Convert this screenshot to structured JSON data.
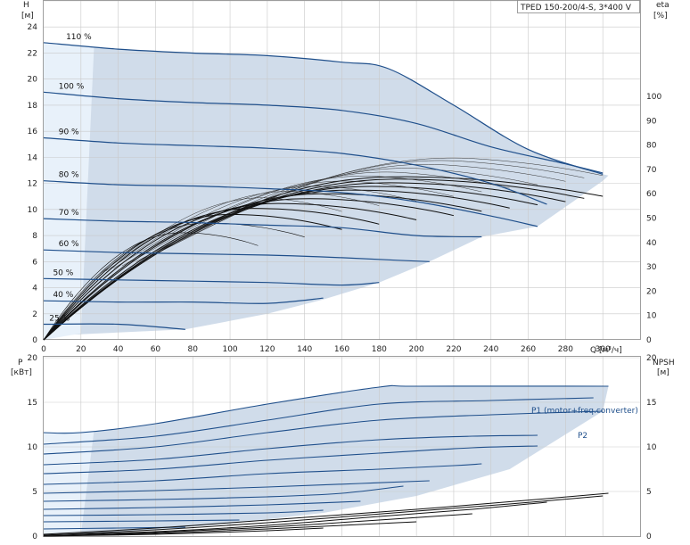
{
  "chart_data": [
    {
      "type": "line",
      "panel": "head-efficiency",
      "title": "TPED 150-200/4-S, 3*400 V",
      "x_axis": {
        "label": "Q [м³/ч]",
        "range": [
          0,
          320
        ],
        "ticks": [
          0,
          20,
          40,
          60,
          80,
          100,
          120,
          140,
          160,
          180,
          200,
          220,
          240,
          260,
          280,
          300
        ]
      },
      "y_left": {
        "label_top": "H",
        "label_unit": "[м]",
        "range": [
          0,
          26
        ],
        "ticks": [
          0,
          2,
          4,
          6,
          8,
          10,
          12,
          14,
          16,
          18,
          20,
          22,
          24
        ]
      },
      "y_right": {
        "label_top": "eta",
        "label_unit": "[%]",
        "range": [
          0,
          100
        ],
        "ticks": [
          0,
          10,
          20,
          30,
          40,
          50,
          60,
          70,
          80,
          90,
          100
        ]
      },
      "grid": true,
      "speed_curves": [
        {
          "name": "110 %",
          "points": [
            [
              0,
              22.8
            ],
            [
              40,
              22.3
            ],
            [
              80,
              22.0
            ],
            [
              120,
              21.8
            ],
            [
              160,
              21.3
            ],
            [
              185,
              20.8
            ],
            [
              220,
              18.0
            ],
            [
              260,
              14.6
            ],
            [
              300,
              12.7
            ]
          ]
        },
        {
          "name": "100 %",
          "points": [
            [
              0,
              19.0
            ],
            [
              40,
              18.5
            ],
            [
              80,
              18.2
            ],
            [
              120,
              18.0
            ],
            [
              160,
              17.6
            ],
            [
              200,
              16.6
            ],
            [
              240,
              14.8
            ],
            [
              280,
              13.5
            ],
            [
              300,
              12.8
            ]
          ]
        },
        {
          "name": "90 %",
          "points": [
            [
              0,
              15.5
            ],
            [
              40,
              15.1
            ],
            [
              80,
              14.9
            ],
            [
              120,
              14.7
            ],
            [
              160,
              14.3
            ],
            [
              200,
              13.4
            ],
            [
              240,
              12.0
            ],
            [
              270,
              10.4
            ]
          ]
        },
        {
          "name": "80 %",
          "points": [
            [
              0,
              12.2
            ],
            [
              40,
              11.9
            ],
            [
              80,
              11.8
            ],
            [
              120,
              11.6
            ],
            [
              160,
              11.3
            ],
            [
              200,
              10.6
            ],
            [
              240,
              9.5
            ],
            [
              265,
              8.7
            ]
          ]
        },
        {
          "name": "70 %",
          "points": [
            [
              0,
              9.3
            ],
            [
              40,
              9.1
            ],
            [
              80,
              9.0
            ],
            [
              120,
              8.8
            ],
            [
              160,
              8.6
            ],
            [
              200,
              8.0
            ],
            [
              235,
              7.9
            ]
          ]
        },
        {
          "name": "60 %",
          "points": [
            [
              0,
              6.9
            ],
            [
              40,
              6.7
            ],
            [
              80,
              6.6
            ],
            [
              120,
              6.5
            ],
            [
              160,
              6.3
            ],
            [
              190,
              6.1
            ],
            [
              207,
              6.0
            ]
          ]
        },
        {
          "name": "50 %",
          "points": [
            [
              0,
              4.7
            ],
            [
              40,
              4.6
            ],
            [
              80,
              4.5
            ],
            [
              120,
              4.4
            ],
            [
              160,
              4.2
            ],
            [
              180,
              4.4
            ]
          ]
        },
        {
          "name": "40 %",
          "points": [
            [
              0,
              3.0
            ],
            [
              40,
              2.9
            ],
            [
              80,
              2.9
            ],
            [
              120,
              2.8
            ],
            [
              150,
              3.2
            ]
          ]
        },
        {
          "name": "25 %",
          "points": [
            [
              0,
              1.2
            ],
            [
              40,
              1.2
            ],
            [
              76,
              0.8
            ]
          ]
        }
      ],
      "efficiency_curves": [
        {
          "scale": 1.0,
          "peak": [
            190,
            67.0
          ],
          "end_q": 300
        },
        {
          "scale": 0.97,
          "peak": [
            190,
            66.0
          ],
          "end_q": 290
        },
        {
          "scale": 0.93,
          "peak": [
            185,
            64.5
          ],
          "end_q": 280
        },
        {
          "scale": 0.88,
          "peak": [
            175,
            63.0
          ],
          "end_q": 265
        },
        {
          "scale": 0.83,
          "peak": [
            165,
            61.5
          ],
          "end_q": 250
        },
        {
          "scale": 0.78,
          "peak": [
            150,
            60.0
          ],
          "end_q": 235
        },
        {
          "scale": 0.72,
          "peak": [
            140,
            58.0
          ],
          "end_q": 220
        },
        {
          "scale": 0.66,
          "peak": [
            125,
            56.0
          ],
          "end_q": 200
        },
        {
          "scale": 0.6,
          "peak": [
            112,
            54.0
          ],
          "end_q": 180
        },
        {
          "scale": 0.54,
          "peak": [
            100,
            51.5
          ],
          "end_q": 160
        },
        {
          "scale": 0.47,
          "peak": [
            88,
            48.0
          ],
          "end_q": 140
        },
        {
          "scale": 0.4,
          "peak": [
            74,
            44.0
          ],
          "end_q": 115
        }
      ]
    },
    {
      "type": "line",
      "panel": "power-npsh",
      "x_axis": {
        "range": [
          0,
          320
        ]
      },
      "y_left": {
        "label_top": "P",
        "label_unit": "[кВт]",
        "range": [
          0,
          20
        ],
        "ticks": [
          0,
          5,
          10,
          15,
          20
        ]
      },
      "y_right": {
        "label_top": "NPSH",
        "label_unit": "[м]",
        "range": [
          0,
          20
        ],
        "ticks": [
          0,
          5,
          10,
          15,
          20
        ]
      },
      "grid": true,
      "series_labels": [
        "P1 (motor+freq.converter)",
        "P2"
      ],
      "power_curves": [
        {
          "points": [
            [
              0,
              11.6
            ],
            [
              20,
              11.6
            ],
            [
              60,
              12.6
            ],
            [
              120,
              14.8
            ],
            [
              180,
              16.7
            ],
            [
              200,
              16.8
            ],
            [
              303,
              16.8
            ]
          ]
        },
        {
          "points": [
            [
              0,
              10.3
            ],
            [
              60,
              11.2
            ],
            [
              120,
              13.0
            ],
            [
              180,
              14.8
            ],
            [
              240,
              15.2
            ],
            [
              295,
              15.5
            ]
          ]
        },
        {
          "points": [
            [
              0,
              9.2
            ],
            [
              60,
              10.0
            ],
            [
              120,
              11.6
            ],
            [
              180,
              13.0
            ],
            [
              240,
              13.6
            ],
            [
              300,
              14.0
            ]
          ]
        },
        {
          "points": [
            [
              0,
              8.0
            ],
            [
              60,
              8.6
            ],
            [
              120,
              9.8
            ],
            [
              180,
              10.8
            ],
            [
              230,
              11.2
            ],
            [
              265,
              11.3
            ]
          ]
        },
        {
          "points": [
            [
              0,
              7.0
            ],
            [
              60,
              7.5
            ],
            [
              120,
              8.5
            ],
            [
              180,
              9.3
            ],
            [
              230,
              9.9
            ],
            [
              265,
              10.1
            ]
          ]
        },
        {
          "points": [
            [
              0,
              5.8
            ],
            [
              60,
              6.2
            ],
            [
              120,
              7.0
            ],
            [
              180,
              7.5
            ],
            [
              220,
              7.9
            ],
            [
              235,
              8.1
            ]
          ]
        },
        {
          "points": [
            [
              0,
              4.8
            ],
            [
              60,
              5.1
            ],
            [
              120,
              5.5
            ],
            [
              170,
              5.9
            ],
            [
              207,
              6.2
            ]
          ]
        },
        {
          "points": [
            [
              0,
              3.9
            ],
            [
              60,
              4.1
            ],
            [
              120,
              4.4
            ],
            [
              160,
              4.8
            ],
            [
              193,
              5.6
            ]
          ]
        },
        {
          "points": [
            [
              0,
              3.0
            ],
            [
              60,
              3.2
            ],
            [
              120,
              3.5
            ],
            [
              170,
              3.9
            ]
          ]
        },
        {
          "points": [
            [
              0,
              2.3
            ],
            [
              60,
              2.4
            ],
            [
              120,
              2.6
            ],
            [
              150,
              2.9
            ]
          ]
        },
        {
          "points": [
            [
              0,
              1.6
            ],
            [
              60,
              1.7
            ],
            [
              105,
              1.8
            ]
          ]
        },
        {
          "points": [
            [
              0,
              0.8
            ],
            [
              40,
              0.9
            ],
            [
              76,
              1.0
            ]
          ]
        }
      ],
      "npsh_curves": [
        {
          "points": [
            [
              0,
              0.2
            ],
            [
              60,
              0.9
            ],
            [
              120,
              1.8
            ],
            [
              200,
              3.0
            ],
            [
              270,
              4.2
            ],
            [
              303,
              4.8
            ]
          ]
        },
        {
          "points": [
            [
              0,
              0.1
            ],
            [
              60,
              0.7
            ],
            [
              120,
              1.5
            ],
            [
              200,
              2.8
            ],
            [
              250,
              3.6
            ],
            [
              300,
              4.5
            ]
          ]
        },
        {
          "points": [
            [
              0,
              0.1
            ],
            [
              60,
              0.5
            ],
            [
              120,
              1.2
            ],
            [
              180,
              2.2
            ],
            [
              230,
              3.0
            ],
            [
              270,
              3.8
            ]
          ]
        },
        {
          "points": [
            [
              0,
              0.0
            ],
            [
              60,
              0.4
            ],
            [
              120,
              1.0
            ],
            [
              180,
              1.8
            ],
            [
              230,
              2.5
            ]
          ]
        },
        {
          "points": [
            [
              0,
              0.0
            ],
            [
              60,
              0.3
            ],
            [
              120,
              0.8
            ],
            [
              160,
              1.2
            ],
            [
              200,
              1.6
            ]
          ]
        },
        {
          "points": [
            [
              0,
              0.0
            ],
            [
              60,
              0.2
            ],
            [
              120,
              0.6
            ],
            [
              150,
              0.9
            ]
          ]
        }
      ]
    }
  ]
}
